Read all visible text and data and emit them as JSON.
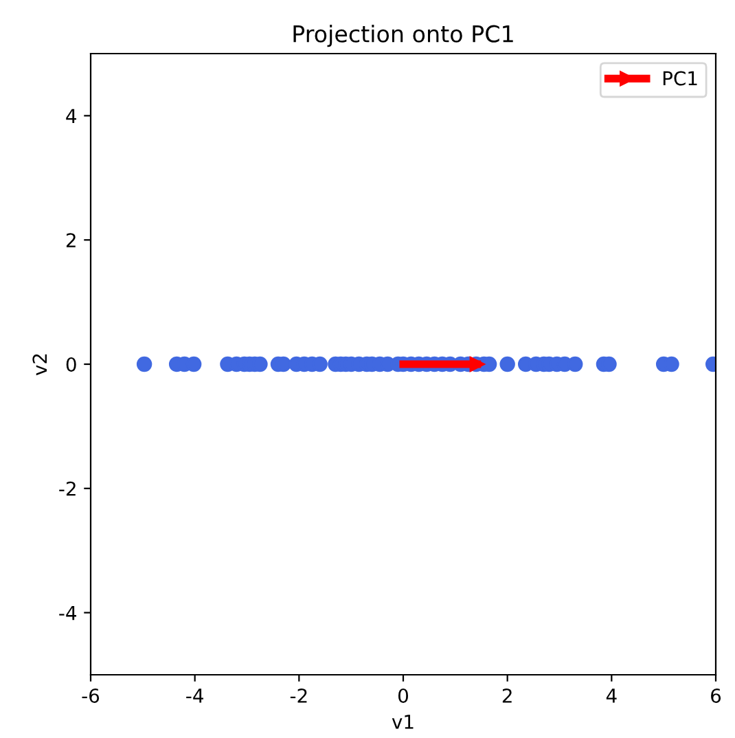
{
  "chart_data": {
    "type": "scatter",
    "title": "Projection onto PC1",
    "xlabel": "v1",
    "ylabel": "v2",
    "xlim": [
      -6,
      6
    ],
    "ylim": [
      -5,
      5
    ],
    "xticks": [
      -6,
      -4,
      -2,
      0,
      2,
      4,
      6
    ],
    "yticks": [
      -4,
      -2,
      0,
      2,
      4
    ],
    "grid": false,
    "legend": "top right",
    "marker": "circle",
    "series": [
      {
        "color": "#4169e1",
        "x": [
          -4.97,
          -4.35,
          -4.2,
          -4.02,
          -3.37,
          -3.2,
          -3.05,
          -2.95,
          -2.85,
          -2.75,
          -2.4,
          -2.3,
          -2.05,
          -1.9,
          -1.75,
          -1.6,
          -1.3,
          -1.2,
          -1.1,
          -1.0,
          -0.85,
          -0.7,
          -0.6,
          -0.45,
          -0.3,
          -0.1,
          0.0,
          0.15,
          0.3,
          0.45,
          0.6,
          0.75,
          0.9,
          1.1,
          1.25,
          1.4,
          1.55,
          1.65,
          2.0,
          2.35,
          2.55,
          2.7,
          2.8,
          2.95,
          3.1,
          3.3,
          3.85,
          3.95,
          5.0,
          5.15,
          5.95
        ],
        "values": [
          0,
          0,
          0,
          0,
          0,
          0,
          0,
          0,
          0,
          0,
          0,
          0,
          0,
          0,
          0,
          0,
          0,
          0,
          0,
          0,
          0,
          0,
          0,
          0,
          0,
          0,
          0,
          0,
          0,
          0,
          0,
          0,
          0,
          0,
          0,
          0,
          0,
          0,
          0,
          0,
          0,
          0,
          0,
          0,
          0,
          0,
          0,
          0,
          0,
          0,
          0
        ]
      },
      {
        "type": "line",
        "name": "PC1",
        "color": "#ff0000",
        "marker": "triangle",
        "x": [
          0,
          1.42
        ],
        "values": [
          0,
          0
        ]
      }
    ]
  }
}
